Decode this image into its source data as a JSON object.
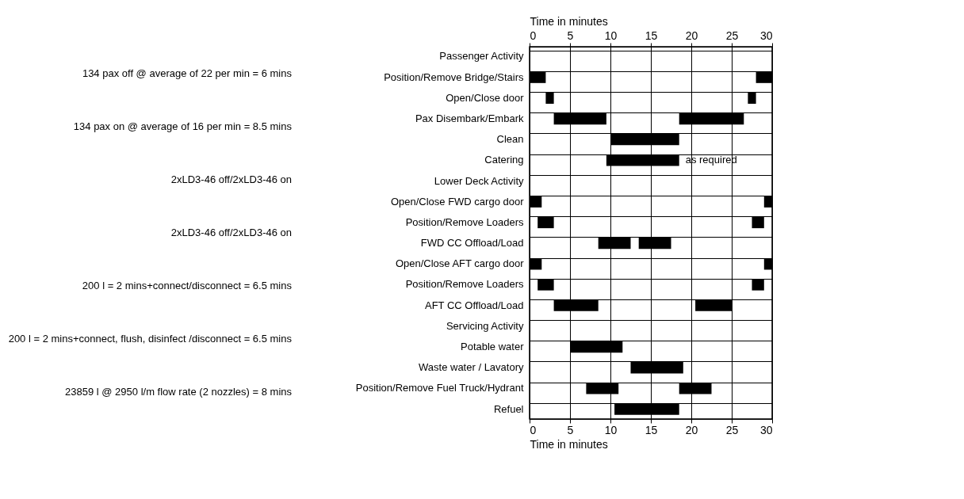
{
  "chart_data": {
    "type": "bar",
    "orientation": "horizontal",
    "xlabel": "Time in minutes",
    "x2label": "Time in minutes",
    "categories": [
      "Passenger Activity",
      "Position/Remove Bridge/Stairs",
      "Open/Close door",
      "Pax Disembark/Embark",
      "Clean",
      "Catering",
      "Lower Deck Activity",
      "Open/Close FWD cargo door",
      "Position/Remove Loaders",
      "FWD CC Offload/Load",
      "Open/Close AFT cargo door",
      "Position/Remove Loaders",
      "AFT CC Offload/Load",
      "Servicing Activity",
      "Potable water",
      "Waste water / Lavatory",
      "Position/Remove Fuel Truck/Hydrant",
      "Refuel"
    ],
    "series": [
      {
        "color": "#000000",
        "base": [
          null,
          0,
          2,
          3,
          10,
          9.5,
          null,
          0,
          1,
          8.5,
          0,
          1,
          3,
          null,
          5,
          12.5,
          7,
          10.5
        ],
        "values": [
          null,
          2,
          1,
          6.5,
          8.5,
          9,
          null,
          1.5,
          2,
          4,
          1.5,
          2,
          5.5,
          null,
          6.5,
          6.5,
          4,
          8
        ]
      },
      {
        "color": "#000000",
        "base": [
          null,
          28,
          27,
          18.5,
          null,
          null,
          null,
          29,
          27.5,
          13.5,
          29,
          27.5,
          20.5,
          null,
          null,
          null,
          18.5,
          null
        ],
        "values": [
          null,
          2,
          1,
          8,
          null,
          null,
          null,
          1,
          1.5,
          4,
          1,
          1.5,
          4.5,
          null,
          null,
          null,
          4,
          null
        ]
      }
    ],
    "xlim": [
      0,
      30
    ],
    "xticks": [
      0,
      5,
      10,
      15,
      20,
      25,
      30
    ],
    "x2lim": [
      0,
      30
    ],
    "x2ticks": [
      0,
      5,
      10,
      15,
      20,
      25,
      30
    ],
    "grid": true,
    "legend": false,
    "annotations": [
      "134 pax off @ average of 22 per min = 6 mins",
      "134 pax on @ average of 16 per min = 8.5 mins",
      {
        "text": "as required",
        "x": 18.5,
        "y": "Catering"
      },
      "2xLD3-46 off/2xLD3-46 on",
      "2xLD3-46 off/2xLD3-46 on",
      "200 l = 2 mins+connect/disconnect = 6.5 mins",
      "200 l = 2 mins+connect, flush, disinfect /disconnect = 6.5 mins",
      "23859 l @ 2950 l/m flow rate (2 nozzles) = 8 mins"
    ]
  }
}
